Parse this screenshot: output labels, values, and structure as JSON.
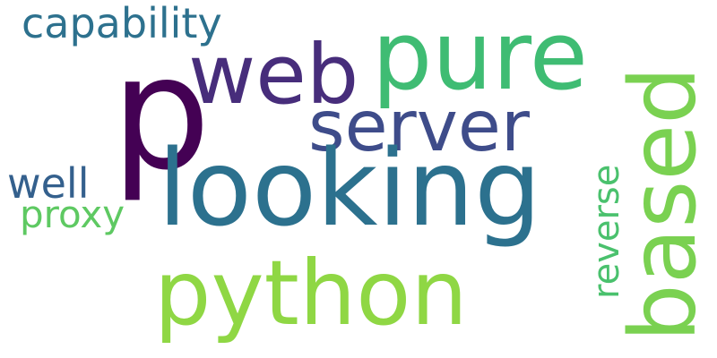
{
  "words": [
    {
      "text": "capability",
      "color": "#2d718e"
    },
    {
      "text": "p",
      "color": "#440154"
    },
    {
      "text": "web",
      "color": "#472d7b"
    },
    {
      "text": "pure",
      "color": "#3fbc73"
    },
    {
      "text": "server",
      "color": "#3e4c8a"
    },
    {
      "text": "looking",
      "color": "#2c718e"
    },
    {
      "text": "well",
      "color": "#34608d"
    },
    {
      "text": "proxy",
      "color": "#5ec962"
    },
    {
      "text": "python",
      "color": "#8fd744"
    },
    {
      "text": "reverse",
      "color": "#4ac16d"
    },
    {
      "text": "based",
      "color": "#7ad151"
    }
  ]
}
